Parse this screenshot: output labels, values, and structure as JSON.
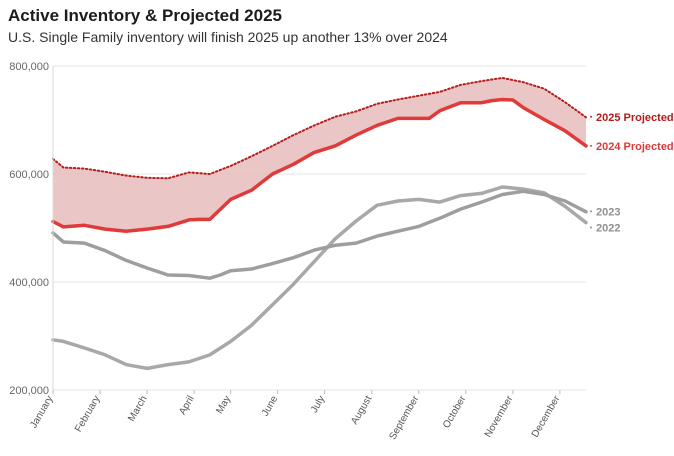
{
  "header": {
    "title": "Active Inventory & Projected 2025",
    "subtitle": "U.S. Single Family inventory will finish 2025 up another 13% over 2024"
  },
  "chart_data": {
    "type": "line",
    "title": "Active Inventory & Projected 2025",
    "subtitle": "U.S. Single Family inventory will finish 2025 up another 13% over 2024",
    "xlabel": "",
    "ylabel": "",
    "x_domain": [
      1,
      52
    ],
    "ylim": [
      200000,
      800000
    ],
    "grid": true,
    "yticks": [
      {
        "value": 200000,
        "label": "200,000"
      },
      {
        "value": 400000,
        "label": "400,000"
      },
      {
        "value": 600000,
        "label": "600,000"
      },
      {
        "value": 800000,
        "label": "800,000"
      }
    ],
    "xticks": [
      {
        "x": 1,
        "label": "January"
      },
      {
        "x": 5.5,
        "label": "February"
      },
      {
        "x": 10,
        "label": "March"
      },
      {
        "x": 14.5,
        "label": "April"
      },
      {
        "x": 18,
        "label": "May"
      },
      {
        "x": 22.5,
        "label": "June"
      },
      {
        "x": 27,
        "label": "July"
      },
      {
        "x": 31.5,
        "label": "August"
      },
      {
        "x": 36,
        "label": "September"
      },
      {
        "x": 40.5,
        "label": "October"
      },
      {
        "x": 45,
        "label": "November"
      },
      {
        "x": 49.5,
        "label": "December"
      }
    ],
    "fill_between": {
      "upper": "2025 Projected",
      "lower": "2024 Projected",
      "color": "#e7bcbc"
    },
    "series": [
      {
        "name": "2025 Projected",
        "color": "#b51c1c",
        "dotted": true,
        "width": 2,
        "x": [
          1,
          2,
          4,
          6,
          8,
          10,
          12,
          14,
          16,
          18,
          20,
          22,
          24,
          26,
          28,
          30,
          32,
          34,
          36,
          38,
          40,
          42,
          44,
          46,
          48,
          50,
          52
        ],
        "y": [
          628000,
          612000,
          610000,
          604000,
          597000,
          593000,
          592000,
          603000,
          600000,
          615000,
          633000,
          652000,
          672000,
          690000,
          706000,
          716000,
          730000,
          738000,
          745000,
          752000,
          765000,
          772000,
          778000,
          770000,
          758000,
          733000,
          705000
        ]
      },
      {
        "name": "2024 Projected",
        "color": "#e03a3a",
        "width": 3.5,
        "x": [
          1,
          2,
          4,
          6,
          8,
          10,
          12,
          14,
          15,
          16,
          18,
          20,
          22,
          24,
          26,
          28,
          30,
          32,
          34,
          36,
          37,
          38,
          40,
          42,
          43,
          44,
          45,
          46,
          48,
          50,
          52
        ],
        "y": [
          512000,
          502000,
          505000,
          498000,
          494000,
          498000,
          503000,
          515000,
          516000,
          516000,
          553000,
          570000,
          600000,
          618000,
          640000,
          652000,
          672000,
          690000,
          703000,
          703000,
          703000,
          717000,
          732000,
          732000,
          736000,
          738000,
          737000,
          723000,
          701000,
          680000,
          652000
        ]
      },
      {
        "name": "2023",
        "color": "#9e9e9e",
        "width": 3.5,
        "x": [
          1,
          2,
          4,
          6,
          8,
          10,
          12,
          14,
          16,
          17,
          18,
          20,
          22,
          24,
          26,
          28,
          30,
          32,
          34,
          36,
          38,
          40,
          42,
          44,
          46,
          48,
          50,
          52
        ],
        "y": [
          491000,
          474000,
          472000,
          458000,
          440000,
          426000,
          413000,
          412000,
          407000,
          413000,
          421000,
          424000,
          434000,
          445000,
          459000,
          468000,
          472000,
          485000,
          494000,
          503000,
          518000,
          535000,
          548000,
          562000,
          568000,
          562000,
          550000,
          530000
        ]
      },
      {
        "name": "2022",
        "color": "#a8a8a8",
        "width": 3.5,
        "x": [
          1,
          2,
          4,
          6,
          8,
          10,
          12,
          14,
          16,
          18,
          20,
          22,
          24,
          26,
          28,
          30,
          32,
          34,
          36,
          38,
          40,
          42,
          44,
          46,
          48,
          50,
          52
        ],
        "y": [
          293000,
          290000,
          278000,
          265000,
          247000,
          240000,
          247000,
          252000,
          265000,
          290000,
          320000,
          358000,
          396000,
          438000,
          480000,
          513000,
          542000,
          550000,
          553000,
          548000,
          560000,
          564000,
          576000,
          572000,
          565000,
          540000,
          510000
        ]
      }
    ],
    "end_labels": [
      {
        "text": "2025 Projected",
        "series": "2025 Projected",
        "color": "#b51c1c",
        "y": 706000
      },
      {
        "text": "2024 Projected",
        "series": "2024 Projected",
        "color": "#e03a3a",
        "y": 652000
      },
      {
        "text": "2023",
        "series": "2023",
        "color": "#8f8f8f",
        "y": 531000
      },
      {
        "text": "2022",
        "series": "2022",
        "color": "#8f8f8f",
        "y": 501000
      }
    ]
  }
}
